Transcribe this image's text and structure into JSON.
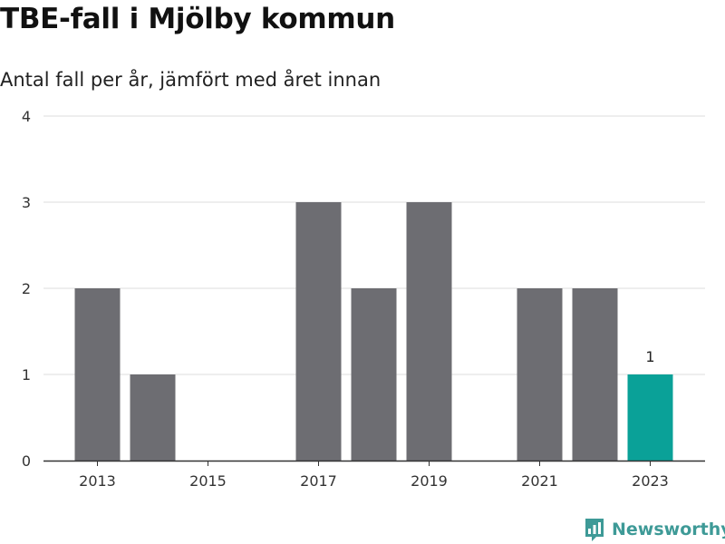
{
  "title": "TBE-fall i Mjölby kommun",
  "subtitle": "Antal fall per år, jämfört med året innan",
  "brand": "Newsworthy",
  "colors": {
    "bar": "#6d6d72",
    "highlight": "#0aa198",
    "grid": "#dddddd",
    "axis": "#333333",
    "brand": "#3e9a97"
  },
  "chart_data": {
    "type": "bar",
    "title": "TBE-fall i Mjölby kommun",
    "subtitle": "Antal fall per år, jämfört med året innan",
    "categories": [
      "2013",
      "2014",
      "2015",
      "2016",
      "2017",
      "2018",
      "2019",
      "2020",
      "2021",
      "2022",
      "2023"
    ],
    "values": [
      2,
      1,
      0,
      0,
      3,
      2,
      3,
      0,
      2,
      2,
      1
    ],
    "highlight_index": 10,
    "data_labels": [
      {
        "category": "2023",
        "text": "1"
      }
    ],
    "x_tick_labels": [
      "2013",
      "2015",
      "2017",
      "2019",
      "2021",
      "2023"
    ],
    "y_ticks": [
      0,
      1,
      2,
      3,
      4
    ],
    "ylim": [
      0,
      4
    ],
    "xlabel": "",
    "ylabel": "",
    "grid": true,
    "legend": "none"
  }
}
